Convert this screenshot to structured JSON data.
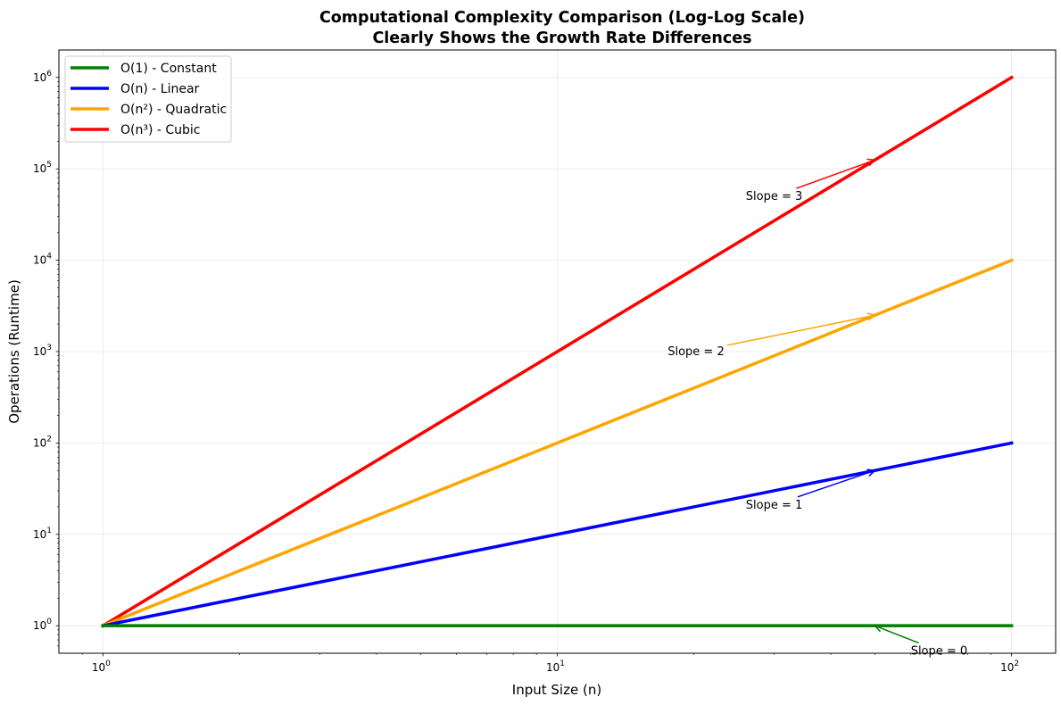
{
  "chart_data": {
    "type": "line",
    "title_line1": "Computational Complexity Comparison (Log-Log Scale)",
    "title_line2": "Clearly Shows the Growth Rate Differences",
    "xlabel": "Input Size (n)",
    "ylabel": "Operations (Runtime)",
    "xscale": "log",
    "yscale": "log",
    "xlim": [
      0.8,
      125
    ],
    "ylim": [
      0.5,
      2000000
    ],
    "x_ticks": [
      {
        "value": 1,
        "base": "10",
        "exp": "0"
      },
      {
        "value": 10,
        "base": "10",
        "exp": "1"
      },
      {
        "value": 100,
        "base": "10",
        "exp": "2"
      }
    ],
    "y_ticks": [
      {
        "value": 1,
        "base": "10",
        "exp": "0"
      },
      {
        "value": 10,
        "base": "10",
        "exp": "1"
      },
      {
        "value": 100,
        "base": "10",
        "exp": "2"
      },
      {
        "value": 1000,
        "base": "10",
        "exp": "3"
      },
      {
        "value": 10000,
        "base": "10",
        "exp": "4"
      },
      {
        "value": 100000,
        "base": "10",
        "exp": "5"
      },
      {
        "value": 1000000,
        "base": "10",
        "exp": "6"
      }
    ],
    "grid": true,
    "legend_position": "upper-left",
    "x_range": [
      1,
      100
    ],
    "series": [
      {
        "name": "O(1) - Constant",
        "exponent": 0,
        "color": "#008000",
        "y_start": 1,
        "y_end": 1
      },
      {
        "name": "O(n) - Linear",
        "exponent": 1,
        "color": "#0000ff",
        "y_start": 1,
        "y_end": 100
      },
      {
        "name": "O(n²) - Quadratic",
        "exponent": 2,
        "color": "#ffa500",
        "y_start": 1,
        "y_end": 10000
      },
      {
        "name": "O(n³) - Cubic",
        "exponent": 3,
        "color": "#ff0000",
        "y_start": 1,
        "y_end": 1000000
      }
    ],
    "annotations": [
      {
        "text": "Slope = 0",
        "color": "#008000",
        "point": [
          50,
          1
        ],
        "text_at": [
          60,
          0.53
        ]
      },
      {
        "text": "Slope = 1",
        "color": "#0000ff",
        "point": [
          50,
          50
        ],
        "text_at": [
          26,
          21
        ]
      },
      {
        "text": "Slope = 2",
        "color": "#ffa500",
        "point": [
          50,
          2500
        ],
        "text_at": [
          17.5,
          1000
        ]
      },
      {
        "text": "Slope = 3",
        "color": "#ff0000",
        "point": [
          50,
          125000
        ],
        "text_at": [
          26,
          50000
        ]
      }
    ]
  }
}
